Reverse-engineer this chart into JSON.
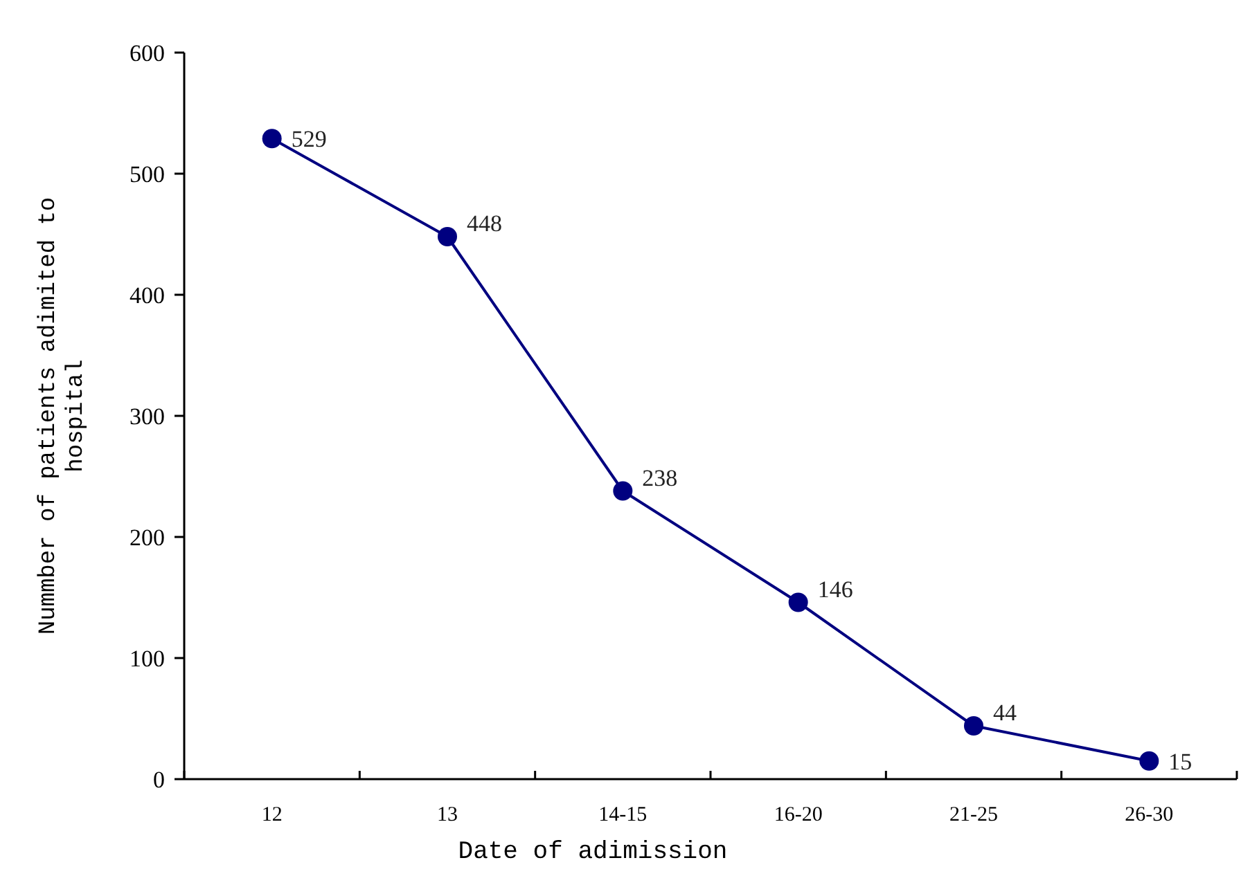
{
  "chart_data": {
    "type": "line",
    "xlabel": "Date of adimission",
    "ylabel": "Nummber of patients adimited to hospital",
    "categories": [
      "12",
      "13",
      "14-15",
      "16-20",
      "21-25",
      "26-30"
    ],
    "series": [
      {
        "color": "#000080",
        "values": [
          529,
          448,
          238,
          146,
          44,
          15
        ]
      }
    ],
    "ylim": [
      0,
      600
    ],
    "yticks": [
      0,
      100,
      200,
      300,
      400,
      500,
      600
    ],
    "grid": false,
    "marker": "circle",
    "line_style": "solid",
    "data_labels": true
  }
}
